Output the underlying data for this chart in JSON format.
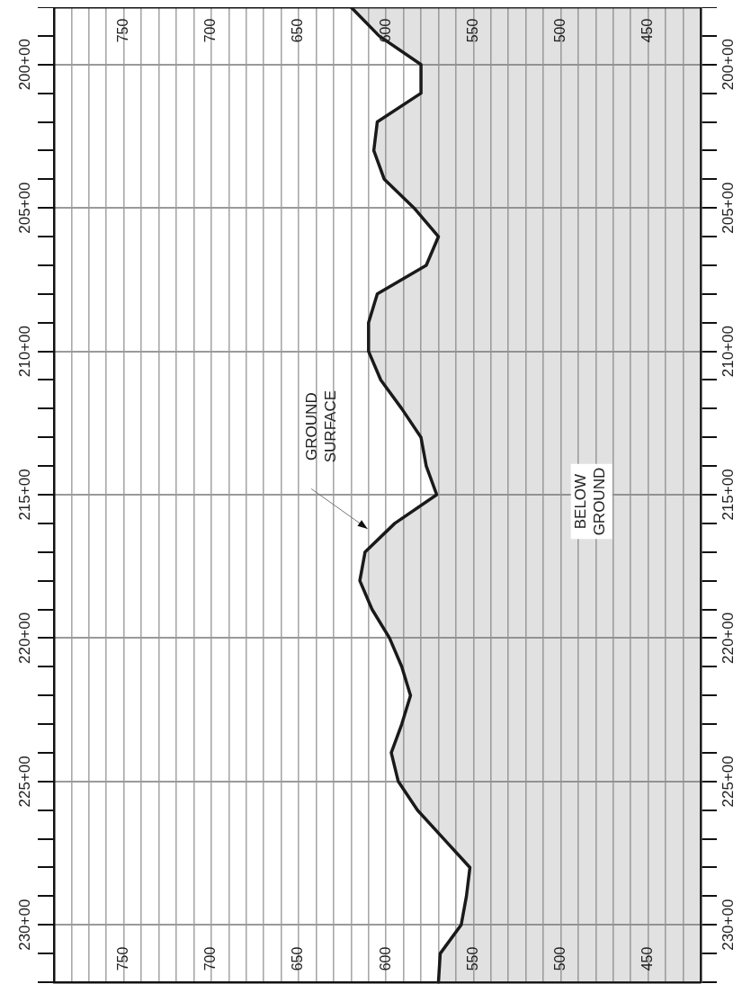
{
  "chart_data": {
    "type": "area",
    "orientation": "horizontal",
    "marker": "none",
    "grid": true,
    "legend": false,
    "categories": [
      null,
      null,
      "200+00",
      null,
      null,
      null,
      null,
      "205+00",
      null,
      null,
      null,
      null,
      "210+00",
      null,
      null,
      null,
      null,
      "215+00",
      null,
      null,
      null,
      null,
      "220+00",
      null,
      null,
      null,
      null,
      "225+00",
      null,
      null,
      null,
      null,
      "230+00",
      null,
      null
    ],
    "xlim": [
      790,
      420
    ],
    "x2lim": [
      790,
      420
    ],
    "xticks": [
      {
        "value": 430,
        "label": null
      },
      {
        "value": 440,
        "label": null
      },
      450,
      {
        "value": 460,
        "label": null
      },
      {
        "value": 470,
        "label": null
      },
      {
        "value": 480,
        "label": null
      },
      {
        "value": 490,
        "label": null
      },
      500,
      {
        "value": 510,
        "label": null
      },
      {
        "value": 520,
        "label": null
      },
      {
        "value": 530,
        "label": null
      },
      {
        "value": 540,
        "label": null
      },
      550,
      {
        "value": 560,
        "label": null
      },
      {
        "value": 570,
        "label": null
      },
      {
        "value": 580,
        "label": null
      },
      {
        "value": 590,
        "label": null
      },
      600,
      {
        "value": 610,
        "label": null
      },
      {
        "value": 620,
        "label": null
      },
      {
        "value": 630,
        "label": null
      },
      {
        "value": 640,
        "label": null
      },
      650,
      {
        "value": 660,
        "label": null
      },
      {
        "value": 670,
        "label": null
      },
      {
        "value": 680,
        "label": null
      },
      {
        "value": 690,
        "label": null
      },
      700,
      {
        "value": 710,
        "label": null
      },
      {
        "value": 720,
        "label": null
      },
      {
        "value": 730,
        "label": null
      },
      {
        "value": 740,
        "label": null
      },
      750,
      {
        "value": 760,
        "label": null
      },
      {
        "value": 770,
        "label": null
      },
      {
        "value": 780,
        "label": null
      }
    ],
    "x2ticks": [
      450,
      500,
      550,
      600,
      650,
      700,
      750
    ],
    "series": [
      {
        "color": "#1a1a1a",
        "values": [
          620,
          604,
          580,
          580,
          605,
          607,
          601,
          584,
          570,
          577,
          605,
          610,
          610,
          603,
          591,
          580,
          577,
          571,
          595,
          612,
          615,
          608,
          598,
          591,
          586,
          591,
          597,
          593,
          582,
          567,
          552,
          554,
          557,
          569,
          570
        ]
      }
    ],
    "annotations": [
      "GROUND SURFACE",
      "BELOW GROUND"
    ]
  }
}
